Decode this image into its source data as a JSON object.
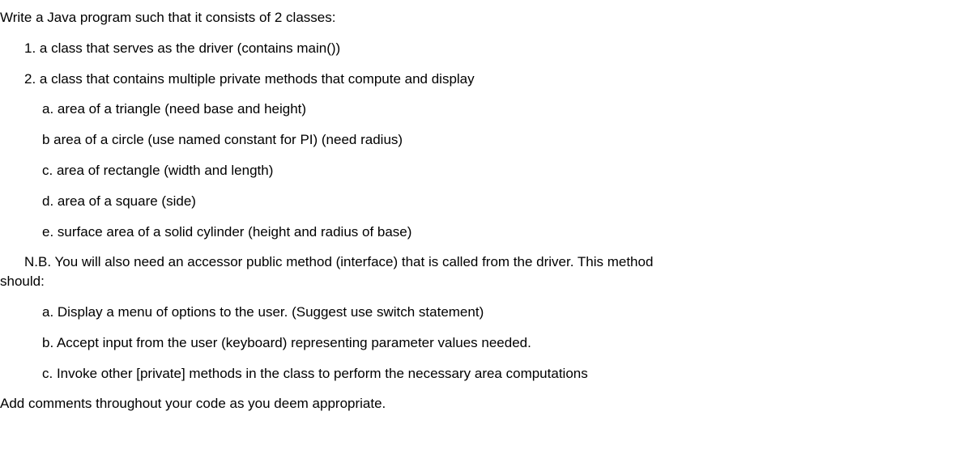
{
  "lines": [
    {
      "indent": 0,
      "text": "Write a Java program such that it consists of  2 classes:"
    },
    {
      "indent": 1,
      "text": "1. a  class that serves as the driver (contains main())"
    },
    {
      "indent": 1,
      "text": "2. a class that contains multiple private methods that compute and display"
    },
    {
      "indent": 2,
      "text": "a.  area of a triangle (need base and height)"
    },
    {
      "indent": 2,
      "text": "b  area of a circle (use named constant for PI) (need radius)"
    },
    {
      "indent": 2,
      "text": "c.  area of rectangle (width and length)"
    },
    {
      "indent": 2,
      "text": "d.  area of a square (side)"
    },
    {
      "indent": 2,
      "text": "e. surface area of a solid cylinder (height and radius of base)"
    },
    {
      "indent": 1,
      "text": "N.B. You will also need an accessor public method (interface) that is called from the driver. This method"
    },
    {
      "indent": 0,
      "text": "should:"
    },
    {
      "indent": 2,
      "text": "a.  Display a menu of options to the user. (Suggest use switch statement)"
    },
    {
      "indent": 2,
      "text": "b.  Accept input from the user (keyboard)  representing parameter values needed."
    },
    {
      "indent": 2,
      "text": "c.  Invoke other [private] methods in the class to perform the necessary area computations"
    },
    {
      "indent": 0,
      "text": "Add comments throughout your code as you deem appropriate."
    }
  ]
}
